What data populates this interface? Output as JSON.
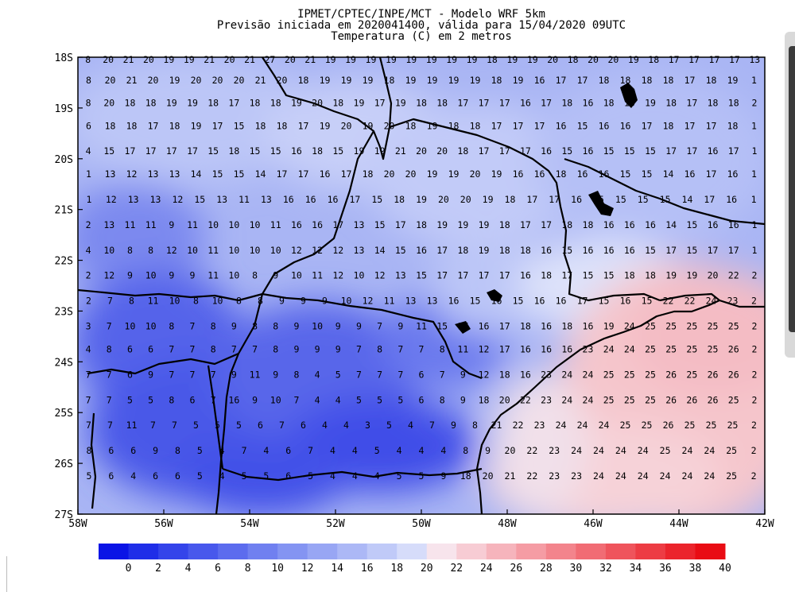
{
  "title": {
    "line1": "IPMET/CPTEC/INPE/MCT - Modelo WRF 5km",
    "line2": "Previsão iniciada em 2020041400, válida para 15/04/2020 09UTC",
    "line3": "Temperatura (C) em 2 metros"
  },
  "map": {
    "lon_range": [
      -58,
      -42
    ],
    "lat_range": [
      -27,
      -18
    ],
    "lon_labels": [
      "58W",
      "56W",
      "54W",
      "52W",
      "50W",
      "48W",
      "46W",
      "44W",
      "42W"
    ],
    "lat_labels": [
      "18S",
      "19S",
      "20S",
      "21S",
      "22S",
      "23S",
      "24S",
      "25S",
      "26S",
      "27S"
    ],
    "colorbar": {
      "levels": [
        "0",
        "2",
        "4",
        "6",
        "8",
        "10",
        "12",
        "14",
        "16",
        "18",
        "20",
        "22",
        "24",
        "26",
        "28",
        "30",
        "32",
        "34",
        "36",
        "38",
        "40"
      ],
      "colors": [
        "#0a14e6",
        "#1f2ee8",
        "#3444ea",
        "#4858ec",
        "#5c6cee",
        "#7080f0",
        "#8494f2",
        "#98a6f4",
        "#acb8f6",
        "#c0caf8",
        "#d6dcfa",
        "#f7e4ec",
        "#f7ccd4",
        "#f6b4bc",
        "#f59ca4",
        "#f3848c",
        "#f16c74",
        "#ef545c",
        "#ed3c44",
        "#eb242c",
        "#e90c14"
      ]
    },
    "value_rows": [
      {
        "lat": "18.05",
        "values": "8 20 21 20 19 19 21 20 21 27 20 21 19 19 19 19 19 19 19 19 18 19 19 20 18 20 20 19 18 17 17 17 17 13"
      },
      {
        "lat": "18.45",
        "values": "8 20 21 20 19 20 20 20 21 20 18 19 19 19 18 19 19 19 19 18 19 16 17 17 18 18 18 18 17 18 19 1"
      },
      {
        "lat": "18.9",
        "values": "8 20 18 18 19 19 18 17 18 18 19 20 18 19 17 19 18 18 17 17 17 16 17 18 16 18 18 19 18 17 18 18 2"
      },
      {
        "lat": "19.35",
        "values": "6 18 18 17 18 19 17 15 18 18 17 19 20 19 20 18 19 18 18 17 17 17 16 15 16 16 17 18 17 17 18 1"
      },
      {
        "lat": "19.85",
        "values": "4 15 17 17 17 17 15 18 15 15 16 18 15 19 19 21 20 20 18 17 17 17 16 15 16 15 15 15 17 17 16 17 1"
      },
      {
        "lat": "20.3",
        "values": "1 13 12 13 13 14 15 15 14 17 17 16 17 18 20 20 19 19 20 19 16 16 18 16 16 15 15 14 16 17 16 1"
      },
      {
        "lat": "20.8",
        "values": "1 12 13 13 12 15 13 11 13 16 16 16 17 15 18 19 20 20 19 18 17 17 16 15 15 15 15 14 17 16 1"
      },
      {
        "lat": "21.3",
        "values": "2 13 11 11 9 11 10 10 10 11 16 16 17 13 15 17 18 19 19 19 18 17 17 18 18 16 16 16 14 15 16 16 1"
      },
      {
        "lat": "21.8",
        "values": "4 10 8 8 12 10 11 10 10 10 12 12 12 13 14 15 16 17 18 19 18 18 16 15 16 16 16 15 17 15 17 17 1"
      },
      {
        "lat": "22.3",
        "values": "2 12 9 10 9 9 11 10 8 9 10 11 12 10 12 13 15 17 17 17 17 16 18 17 15 15 18 18 19 19 20 22 2"
      },
      {
        "lat": "22.8",
        "values": "2 7 8 11 10 8 10 8 8 9 9 9 10 12 11 13 13 16 15 16 15 16 16 17 15 16 15 22 22 24 23 2"
      },
      {
        "lat": "23.3",
        "values": "3 7 10 10 8 7 8 9 8 8 9 10 9 9 7 9 11 15 17 16 17 18 16 18 16 19 24 25 25 25 25 25 2"
      },
      {
        "lat": "23.75",
        "values": "4 8 6 6 7 7 8 7 7 8 9 9 9 7 8 7 7 8 11 12 17 16 16 16 23 24 24 25 25 25 25 26 2"
      },
      {
        "lat": "24.25",
        "values": "7 7 6 9 7 7 7 9 11 9 8 4 5 7 7 7 6 7 9 12 18 16 23 24 24 25 25 25 26 25 26 26 2"
      },
      {
        "lat": "24.75",
        "values": "7 7 5 5 8 6 7 16 9 10 7 4 4 5 5 5 6 8 9 18 20 22 23 24 24 25 25 25 26 26 26 25 2"
      },
      {
        "lat": "25.25",
        "values": "7 7 11 7 7 5 5 5 6 7 6 4 4 3 5 4 7 9 8 21 22 23 24 24 24 25 25 26 25 25 25 2"
      },
      {
        "lat": "25.75",
        "values": "8 6 6 9 8 5 4 7 4 6 7 4 4 5 4 4 4 8 9 20 22 23 24 24 24 24 25 24 24 25 2"
      },
      {
        "lat": "26.25",
        "values": "5 6 4 6 6 5 4 5 5 6 5 4 4 4 5 5 9 18 20 21 22 23 23 24 24 24 24 24 24 25 2"
      }
    ]
  }
}
